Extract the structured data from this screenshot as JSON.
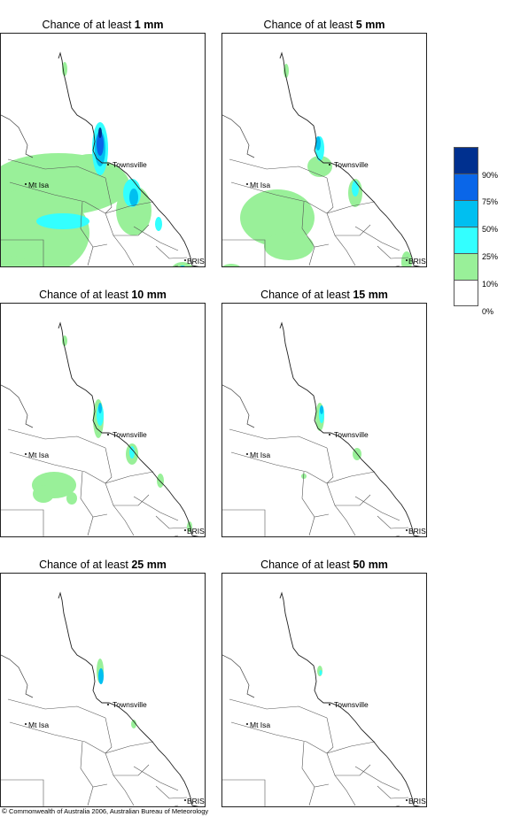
{
  "title_prefix": "Chance of at least ",
  "panels": [
    {
      "threshold": "1 mm"
    },
    {
      "threshold": "5 mm"
    },
    {
      "threshold": "10 mm"
    },
    {
      "threshold": "15 mm"
    },
    {
      "threshold": "25 mm"
    },
    {
      "threshold": "50 mm"
    }
  ],
  "place_labels": {
    "townsville": "Townsville",
    "mt_isa": "Mt Isa",
    "bris": "BRIS"
  },
  "legend": {
    "labels": [
      "90%",
      "75%",
      "50%",
      "25%",
      "10%",
      "0%"
    ],
    "colors": [
      "#00308f",
      "#0a66e8",
      "#00bff0",
      "#33ffff",
      "#99f099",
      "#ffffff"
    ]
  },
  "copyright": {
    "symbol": "©",
    "text": "Commonwealth of Australia 2006, Australian Bureau of Meteorology"
  }
}
